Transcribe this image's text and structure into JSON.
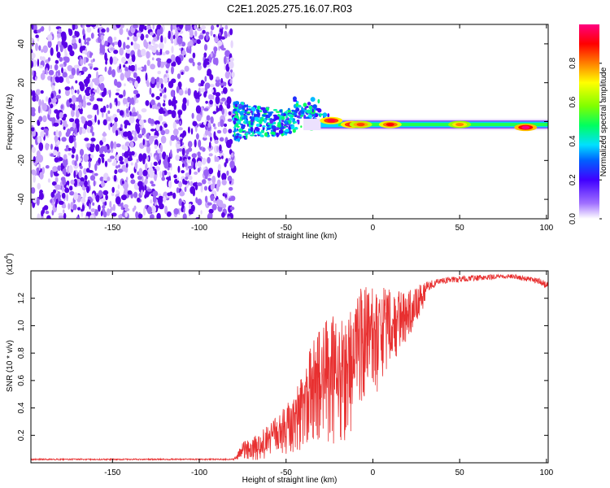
{
  "title": "C2E1.2025.275.16.07.R03",
  "chart_data": [
    {
      "type": "heatmap",
      "xlabel": "Height of straight line (km)",
      "ylabel": "Frequency (Hz)",
      "xlim": [
        -197,
        101
      ],
      "ylim": [
        -50,
        50
      ],
      "xticks": [
        -150,
        -100,
        -50,
        0,
        50,
        100
      ],
      "yticks": [
        -40,
        -20,
        0,
        20,
        40
      ],
      "noise_region_x": [
        -197,
        -80
      ],
      "ridge": {
        "y": -1.5,
        "x_range": [
          -80,
          101
        ]
      },
      "hotspots": [
        {
          "x": -24,
          "y": 0.5,
          "amplitude": 0.95
        },
        {
          "x": -12,
          "y": -1.5,
          "amplitude": 0.95
        },
        {
          "x": -7,
          "y": -1.5,
          "amplitude": 0.85
        },
        {
          "x": 10,
          "y": -1.5,
          "amplitude": 0.9
        },
        {
          "x": 50,
          "y": -1.5,
          "amplitude": 0.8
        },
        {
          "x": 88,
          "y": -3,
          "amplitude": 1.0
        }
      ],
      "colorbar": {
        "label": "Normalized spectral amplitude",
        "range": [
          0,
          1
        ],
        "ticks": [
          "0.0",
          "0.2",
          "0.4",
          "0.6",
          "0.8"
        ],
        "colors": [
          "#ffffff",
          "#a070ff",
          "#4000ff",
          "#0060ff",
          "#00e0ff",
          "#00ff60",
          "#80ff00",
          "#ffff00",
          "#ff8000",
          "#ff0000",
          "#ff0080"
        ]
      }
    },
    {
      "type": "line",
      "xlabel": "Height of straight line (km)",
      "ylabel": "SNR (10 * v/v)",
      "y_multiplier": "(x10",
      "y_multiplier_exp": "4",
      "xlim": [
        -197,
        101
      ],
      "ylim": [
        0,
        1.4
      ],
      "xticks": [
        -150,
        -100,
        -50,
        0,
        50,
        100
      ],
      "yticks": [
        "0.2",
        "0.4",
        "0.6",
        "0.8",
        "1.0",
        "1.2"
      ],
      "color": "#e83030",
      "envelope": [
        {
          "x": -197,
          "lo": 0.02,
          "hi": 0.03
        },
        {
          "x": -80,
          "lo": 0.02,
          "hi": 0.03
        },
        {
          "x": -75,
          "lo": 0.02,
          "hi": 0.15
        },
        {
          "x": -65,
          "lo": 0.02,
          "hi": 0.22
        },
        {
          "x": -55,
          "lo": 0.05,
          "hi": 0.35
        },
        {
          "x": -45,
          "lo": 0.08,
          "hi": 0.5
        },
        {
          "x": -38,
          "lo": 0.1,
          "hi": 0.8
        },
        {
          "x": -30,
          "lo": 0.12,
          "hi": 1.02
        },
        {
          "x": -25,
          "lo": 0.1,
          "hi": 1.1
        },
        {
          "x": -20,
          "lo": 0.08,
          "hi": 1.03
        },
        {
          "x": -15,
          "lo": 0.15,
          "hi": 1.15
        },
        {
          "x": -8,
          "lo": 0.3,
          "hi": 1.27
        },
        {
          "x": 0,
          "lo": 0.45,
          "hi": 1.3
        },
        {
          "x": 10,
          "lo": 0.7,
          "hi": 1.27
        },
        {
          "x": 20,
          "lo": 0.9,
          "hi": 1.25
        },
        {
          "x": 30,
          "lo": 1.15,
          "hi": 1.32
        },
        {
          "x": 40,
          "lo": 1.25,
          "hi": 1.35
        },
        {
          "x": 60,
          "lo": 1.28,
          "hi": 1.37
        },
        {
          "x": 80,
          "lo": 1.3,
          "hi": 1.38
        },
        {
          "x": 95,
          "lo": 1.25,
          "hi": 1.35
        },
        {
          "x": 101,
          "lo": 1.2,
          "hi": 1.32
        }
      ]
    }
  ]
}
